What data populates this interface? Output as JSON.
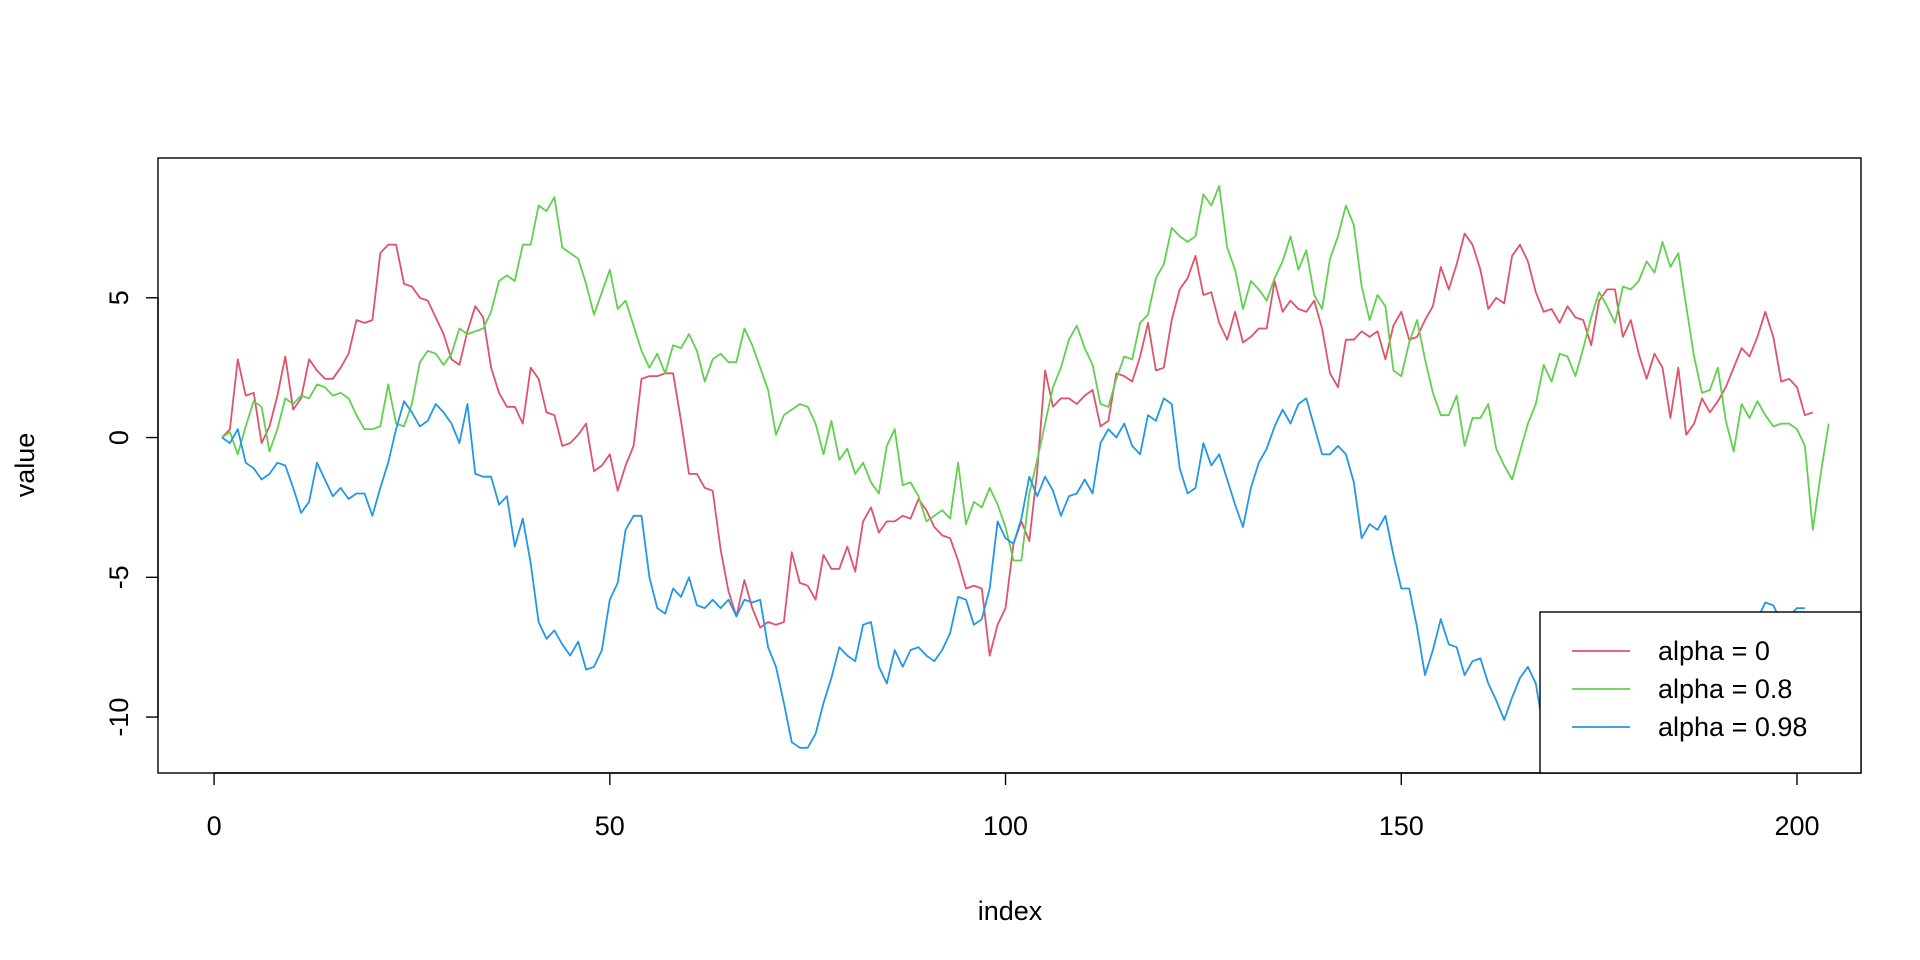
{
  "chart_data": {
    "type": "line",
    "title": "",
    "xlabel": "index",
    "ylabel": "value",
    "xlim": [
      1,
      200
    ],
    "ylim": [
      -11.5,
      9.5
    ],
    "x_ticks": [
      0,
      50,
      100,
      150,
      200
    ],
    "y_ticks": [
      -10,
      -5,
      0,
      5
    ],
    "legend_position": "bottom-right",
    "grid": false,
    "series": [
      {
        "name": "alpha = 0",
        "color": "#DF536B",
        "x_start": 1,
        "values": [
          0,
          0.3,
          2.8,
          1.5,
          1.6,
          -0.2,
          0.4,
          1.5,
          2.9,
          1.0,
          1.4,
          2.8,
          2.4,
          2.1,
          2.1,
          2.5,
          3.0,
          4.2,
          4.1,
          4.2,
          6.6,
          6.9,
          6.9,
          5.5,
          5.4,
          5.0,
          4.9,
          4.3,
          3.7,
          2.8,
          2.6,
          3.8,
          4.7,
          4.3,
          2.5,
          1.6,
          1.1,
          1.1,
          0.5,
          2.5,
          2.1,
          0.9,
          0.8,
          -0.3,
          -0.2,
          0.1,
          0.5,
          -1.2,
          -1.0,
          -0.6,
          -1.9,
          -1.0,
          -0.3,
          2.1,
          2.2,
          2.2,
          2.3,
          2.3,
          0.6,
          -1.3,
          -1.3,
          -1.8,
          -1.9,
          -4.0,
          -5.5,
          -6.4,
          -5.1,
          -6.1,
          -6.8,
          -6.6,
          -6.7,
          -6.6,
          -4.1,
          -5.2,
          -5.3,
          -5.8,
          -4.2,
          -4.7,
          -4.7,
          -3.9,
          -4.8,
          -3.0,
          -2.5,
          -3.4,
          -3.0,
          -3.0,
          -2.8,
          -2.9,
          -2.2,
          -2.6,
          -3.2,
          -3.5,
          -3.6,
          -4.4,
          -5.4,
          -5.3,
          -5.4,
          -7.8,
          -6.7,
          -6.1,
          -3.8,
          -3.0,
          -3.7,
          -1.2,
          2.4,
          1.1,
          1.4,
          1.4,
          1.2,
          1.5,
          1.7,
          0.4,
          0.6,
          2.3,
          2.2,
          2.0,
          2.9,
          4.1,
          2.4,
          2.5,
          4.2,
          5.3,
          5.7,
          6.5,
          5.1,
          5.2,
          4.1,
          3.5,
          4.5,
          3.4,
          3.6,
          3.9,
          3.9,
          5.6,
          4.5,
          4.9,
          4.6,
          4.5,
          4.9,
          3.9,
          2.3,
          1.8,
          3.5,
          3.5,
          3.8,
          3.6,
          3.8,
          2.8,
          4.0,
          4.5,
          3.5,
          3.6,
          4.2,
          4.7,
          6.1,
          5.3,
          6.2,
          7.3,
          6.9,
          6.0,
          4.6,
          5.0,
          4.8,
          6.5,
          6.9,
          6.3,
          5.2,
          4.5,
          4.6,
          4.1,
          4.7,
          4.3,
          4.2,
          3.3,
          4.9,
          5.3,
          5.3,
          3.6,
          4.2,
          3.0,
          2.1,
          3.0,
          2.5,
          0.7,
          2.5,
          0.1,
          0.5,
          1.4,
          0.9,
          1.3,
          1.8,
          2.5,
          3.2,
          2.9,
          3.6,
          4.5,
          3.6,
          2.0,
          2.1,
          1.8,
          0.8,
          0.9
        ]
      },
      {
        "name": "alpha = 0.8",
        "color": "#61D04F",
        "x_start": 1,
        "values": [
          0,
          0.2,
          -0.6,
          0.4,
          1.3,
          1.1,
          -0.5,
          0.3,
          1.4,
          1.2,
          1.5,
          1.4,
          1.9,
          1.8,
          1.5,
          1.6,
          1.4,
          0.8,
          0.3,
          0.3,
          0.4,
          1.9,
          0.5,
          0.4,
          1.2,
          2.7,
          3.1,
          3.0,
          2.6,
          3.0,
          3.9,
          3.7,
          3.8,
          3.9,
          4.5,
          5.6,
          5.8,
          5.6,
          6.9,
          6.9,
          8.3,
          8.1,
          8.6,
          6.8,
          6.6,
          6.4,
          5.5,
          4.4,
          5.2,
          6.0,
          4.6,
          4.9,
          4.0,
          3.1,
          2.5,
          3.0,
          2.3,
          3.3,
          3.2,
          3.7,
          3.1,
          2.0,
          2.8,
          3.0,
          2.7,
          2.7,
          3.9,
          3.3,
          2.5,
          1.7,
          0.1,
          0.8,
          1.0,
          1.2,
          1.1,
          0.5,
          -0.6,
          0.6,
          -0.8,
          -0.4,
          -1.3,
          -0.9,
          -1.6,
          -2.0,
          -0.3,
          0.3,
          -1.7,
          -1.6,
          -2.1,
          -3.0,
          -2.8,
          -2.6,
          -2.9,
          -0.9,
          -3.1,
          -2.3,
          -2.5,
          -1.8,
          -2.4,
          -3.2,
          -4.4,
          -4.4,
          -2.0,
          -0.8,
          0.5,
          1.8,
          2.5,
          3.5,
          4.0,
          3.2,
          2.6,
          1.2,
          1.1,
          2.1,
          2.9,
          2.8,
          4.1,
          4.4,
          5.7,
          6.2,
          7.5,
          7.2,
          7.0,
          7.2,
          8.7,
          8.3,
          9.0,
          6.8,
          6.0,
          4.6,
          5.6,
          5.3,
          4.9,
          5.7,
          6.3,
          7.2,
          6.0,
          6.7,
          5.1,
          4.6,
          6.4,
          7.2,
          8.3,
          7.6,
          5.4,
          4.2,
          5.1,
          4.7,
          2.4,
          2.2,
          3.4,
          4.2,
          2.8,
          1.6,
          0.8,
          0.8,
          1.5,
          -0.3,
          0.7,
          0.7,
          1.2,
          -0.4,
          -1.0,
          -1.5,
          -0.5,
          0.5,
          1.2,
          2.6,
          2.0,
          3.0,
          2.9,
          2.2,
          3.2,
          4.3,
          5.2,
          4.7,
          4.1,
          5.4,
          5.3,
          5.6,
          6.3,
          5.9,
          7.0,
          6.1,
          6.6,
          4.7,
          2.9,
          1.6,
          1.7,
          2.5,
          0.6,
          -0.5,
          1.2,
          0.7,
          1.3,
          0.8,
          0.4,
          0.5,
          0.5,
          0.3,
          -0.3,
          -3.3,
          -1.3,
          0.5
        ]
      },
      {
        "name": "alpha = 0.98",
        "color": "#2297E6",
        "x_start": 1,
        "values": [
          0,
          -0.2,
          0.3,
          -0.9,
          -1.1,
          -1.5,
          -1.3,
          -0.9,
          -1.0,
          -1.8,
          -2.7,
          -2.3,
          -0.9,
          -1.5,
          -2.1,
          -1.8,
          -2.2,
          -2.0,
          -2.0,
          -2.8,
          -1.8,
          -0.9,
          0.3,
          1.3,
          0.9,
          0.4,
          0.6,
          1.2,
          0.9,
          0.5,
          -0.2,
          1.2,
          -1.3,
          -1.4,
          -1.4,
          -2.4,
          -2.1,
          -3.9,
          -2.9,
          -4.5,
          -6.6,
          -7.2,
          -6.9,
          -7.4,
          -7.8,
          -7.3,
          -8.3,
          -8.2,
          -7.6,
          -5.8,
          -5.2,
          -3.3,
          -2.8,
          -2.8,
          -5.0,
          -6.1,
          -6.3,
          -5.4,
          -5.7,
          -5.0,
          -6.0,
          -6.1,
          -5.8,
          -6.1,
          -5.8,
          -6.4,
          -5.8,
          -5.9,
          -5.8,
          -7.5,
          -8.2,
          -9.5,
          -10.9,
          -11.1,
          -11.1,
          -10.6,
          -9.5,
          -8.6,
          -7.5,
          -7.8,
          -8.0,
          -6.7,
          -6.6,
          -8.2,
          -8.8,
          -7.6,
          -8.2,
          -7.6,
          -7.5,
          -7.8,
          -8.0,
          -7.6,
          -7.0,
          -5.7,
          -5.8,
          -6.7,
          -6.5,
          -5.4,
          -3.0,
          -3.6,
          -3.8,
          -2.9,
          -1.4,
          -2.1,
          -1.4,
          -1.9,
          -2.8,
          -2.1,
          -2.0,
          -1.5,
          -2.0,
          -0.2,
          0.3,
          0.0,
          0.5,
          -0.3,
          -0.6,
          0.8,
          0.6,
          1.4,
          1.2,
          -1.1,
          -2.0,
          -1.8,
          -0.2,
          -1.0,
          -0.6,
          -1.5,
          -2.4,
          -3.2,
          -1.8,
          -0.9,
          -0.4,
          0.4,
          1.0,
          0.5,
          1.2,
          1.4,
          0.4,
          -0.6,
          -0.6,
          -0.3,
          -0.6,
          -1.6,
          -3.6,
          -3.1,
          -3.3,
          -2.8,
          -4.2,
          -5.4,
          -5.4,
          -6.8,
          -8.5,
          -7.6,
          -6.5,
          -7.4,
          -7.5,
          -8.5,
          -8.0,
          -7.9,
          -8.8,
          -9.4,
          -10.1,
          -9.3,
          -8.6,
          -8.2,
          -8.8,
          -10.5,
          -9.7,
          -9.7,
          -9.6,
          -9.8,
          -9.5,
          -9.2,
          -8.5,
          -8.7,
          -8.9,
          -8.5,
          -8.2,
          -8.4,
          -7.9,
          -7.5,
          -7.8,
          -7.2,
          -6.8,
          -7.1,
          -6.9,
          -7.3,
          -7.0,
          -6.8,
          -7.1,
          -6.9,
          -7.2,
          -6.9,
          -6.5,
          -5.9,
          -6.0,
          -6.6,
          -6.4,
          -6.1,
          -6.1
        ]
      }
    ]
  }
}
